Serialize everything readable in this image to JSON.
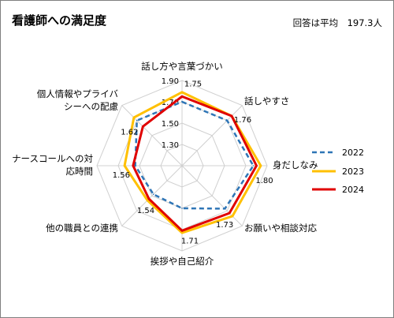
{
  "title": "看護師への満足度",
  "note": "回答は平均　197.3人",
  "chart_data": {
    "type": "radar",
    "title": "看護師への満足度",
    "axes": [
      {
        "name": "話し方や言葉づかい",
        "lines": [
          "話し方や言葉づかい"
        ]
      },
      {
        "name": "話しやすさ",
        "lines": [
          "話しやすさ"
        ]
      },
      {
        "name": "身だしなみ",
        "lines": [
          "身だしなみ"
        ]
      },
      {
        "name": "お願いや相談対応",
        "lines": [
          "お願いや相談対応"
        ]
      },
      {
        "name": "挨拶や自己紹介",
        "lines": [
          "挨拶や自己紹介"
        ]
      },
      {
        "name": "他の職員との連携",
        "lines": [
          "他の職員との連携"
        ]
      },
      {
        "name": "ナースコールへの対応時間",
        "lines": [
          "ナースコールへの対",
          "応時間"
        ]
      },
      {
        "name": "個人情報やプライバシーへの配慮",
        "lines": [
          "個人情報やプライバ",
          "シーへの配慮"
        ]
      }
    ],
    "r_ticks": [
      "1.30",
      "1.50",
      "1.70",
      "1.90"
    ],
    "r_range": [
      1.1,
      1.9
    ],
    "series": [
      {
        "name": "2022",
        "color": "#2e75b6",
        "dash": true,
        "values": [
          1.7,
          1.7,
          1.77,
          1.67,
          1.5,
          1.48,
          1.54,
          1.7
        ]
      },
      {
        "name": "2023",
        "color": "#ffc000",
        "dash": false,
        "values": [
          1.79,
          1.76,
          1.84,
          1.77,
          1.73,
          1.56,
          1.64,
          1.74
        ]
      },
      {
        "name": "2024",
        "color": "#e00000",
        "dash": false,
        "values": [
          1.75,
          1.76,
          1.8,
          1.73,
          1.71,
          1.54,
          1.56,
          1.62
        ]
      }
    ],
    "data_labels": [
      {
        "axis": 0,
        "text": "1.75"
      },
      {
        "axis": 1,
        "text": "1.76"
      },
      {
        "axis": 2,
        "text": "1.80"
      },
      {
        "axis": 3,
        "text": "1.73"
      },
      {
        "axis": 4,
        "text": "1.71"
      },
      {
        "axis": 5,
        "text": "1.54"
      },
      {
        "axis": 6,
        "text": "1.56"
      },
      {
        "axis": 7,
        "text": "1.62"
      }
    ],
    "legend_position": "right"
  }
}
